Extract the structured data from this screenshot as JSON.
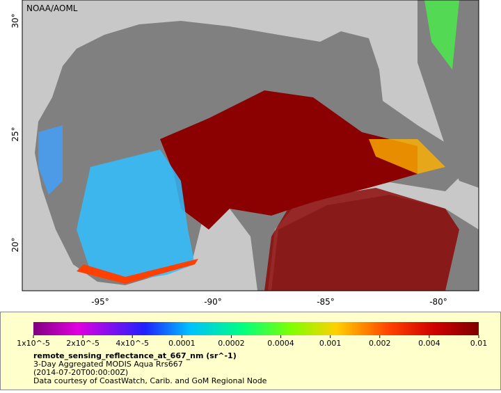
{
  "map": {
    "credit": "NOAA/AOML",
    "lat_labels": [
      "30°",
      "25°",
      "20°"
    ],
    "lon_labels": [
      "-95°",
      "-90°",
      "-85°",
      "-80°"
    ]
  },
  "legend": {
    "ticks": [
      "1x10^-5",
      "2x10^-5",
      "4x10^-5",
      "0.0001",
      "0.0002",
      "0.0004",
      "0.001",
      "0.002",
      "0.004",
      "0.01"
    ],
    "variable": "remote_sensing_reflectance_at_667_nm (sr^-1)",
    "lines": [
      "3-Day Aggregated MODIS Aqua Rrs667",
      "(2014-07-20T00:00:00Z)",
      "Data courtesy of CoastWatch, Carib. and GoM Regional Node"
    ]
  }
}
